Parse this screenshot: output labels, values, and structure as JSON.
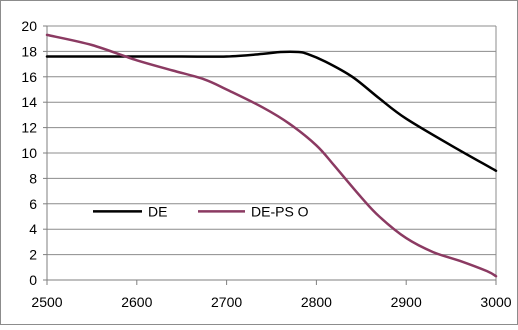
{
  "chart_data": {
    "type": "line",
    "xlim": [
      2500,
      3000
    ],
    "ylim": [
      0,
      20
    ],
    "x_ticks": [
      "2500",
      "2600",
      "2700",
      "2800",
      "2900",
      "3000"
    ],
    "y_ticks": [
      "0",
      "2",
      "4",
      "6",
      "8",
      "10",
      "12",
      "14",
      "16",
      "18",
      "20"
    ],
    "grid": "horizontal",
    "legend_position": "center-left",
    "series": [
      {
        "name": "DE",
        "color": "#000000",
        "x": [
          2500,
          2550,
          2600,
          2650,
          2700,
          2740,
          2760,
          2780,
          2790,
          2810,
          2840,
          2870,
          2900,
          2950,
          3000
        ],
        "y": [
          17.6,
          17.6,
          17.6,
          17.6,
          17.6,
          17.8,
          17.95,
          17.95,
          17.8,
          17.2,
          16.0,
          14.3,
          12.7,
          10.6,
          8.6
        ]
      },
      {
        "name": "DE-PS O",
        "color": "#8b3a62",
        "x": [
          2500,
          2550,
          2600,
          2640,
          2675,
          2700,
          2740,
          2770,
          2800,
          2820,
          2850,
          2870,
          2900,
          2930,
          2960,
          2990,
          3000
        ],
        "y": [
          19.3,
          18.5,
          17.3,
          16.5,
          15.8,
          15.0,
          13.6,
          12.3,
          10.6,
          9.0,
          6.5,
          5.0,
          3.3,
          2.2,
          1.5,
          0.7,
          0.3
        ]
      }
    ]
  }
}
